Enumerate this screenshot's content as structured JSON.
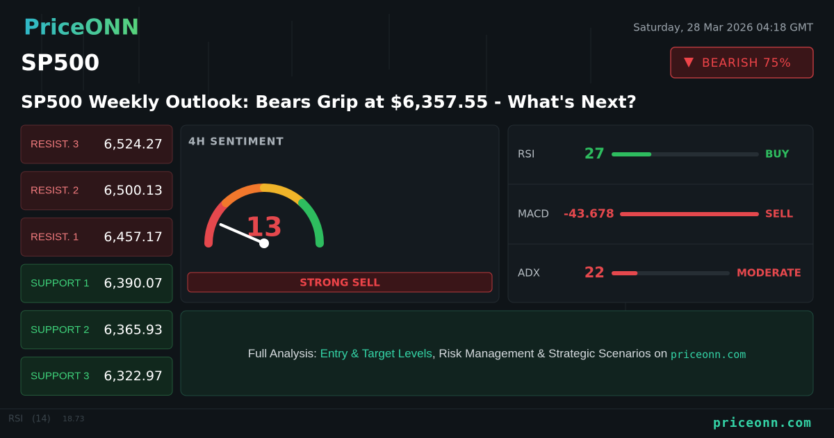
{
  "header": {
    "logo": "PriceONN",
    "date": "Saturday, 28 Mar 2026 04:18 GMT",
    "symbol": "SP500",
    "badge": "BEARISH 75%",
    "title": "SP500 Weekly Outlook: Bears Grip at $6,357.55 - What's Next?"
  },
  "levels": [
    {
      "label": "RESIST. 3",
      "price": "6,524.27",
      "kind": "resist"
    },
    {
      "label": "RESIST. 2",
      "price": "6,500.13",
      "kind": "resist"
    },
    {
      "label": "RESIST. 1",
      "price": "6,457.17",
      "kind": "resist"
    },
    {
      "label": "SUPPORT 1",
      "price": "6,390.07",
      "kind": "support"
    },
    {
      "label": "SUPPORT 2",
      "price": "6,365.93",
      "kind": "support"
    },
    {
      "label": "SUPPORT 3",
      "price": "6,322.97",
      "kind": "support"
    }
  ],
  "sentiment": {
    "title": "4H SENTIMENT",
    "value": 13,
    "range": [
      0,
      100
    ],
    "verdict": "STRONG SELL"
  },
  "indicators": [
    {
      "name": "RSI",
      "value": 27,
      "range": [
        0,
        100
      ],
      "signal": "BUY",
      "color": "#2ebd5f"
    },
    {
      "name": "MACD",
      "value": -43.678,
      "signal": "SELL",
      "color": "#e5484d"
    },
    {
      "name": "ADX",
      "value": 22,
      "range": [
        0,
        100
      ],
      "signal": "MODERATE",
      "color": "#e5484d"
    }
  ],
  "cta": {
    "lead": "Full Analysis: ",
    "highlight": "Entry & Target Levels",
    "rest": ", Risk Management & Strategic Scenarios on ",
    "site": "priceonn.com"
  },
  "background": {
    "indicator": "RSI",
    "period": "(14)",
    "reading": "18.73"
  },
  "footer": {
    "site": "priceonn.com"
  }
}
